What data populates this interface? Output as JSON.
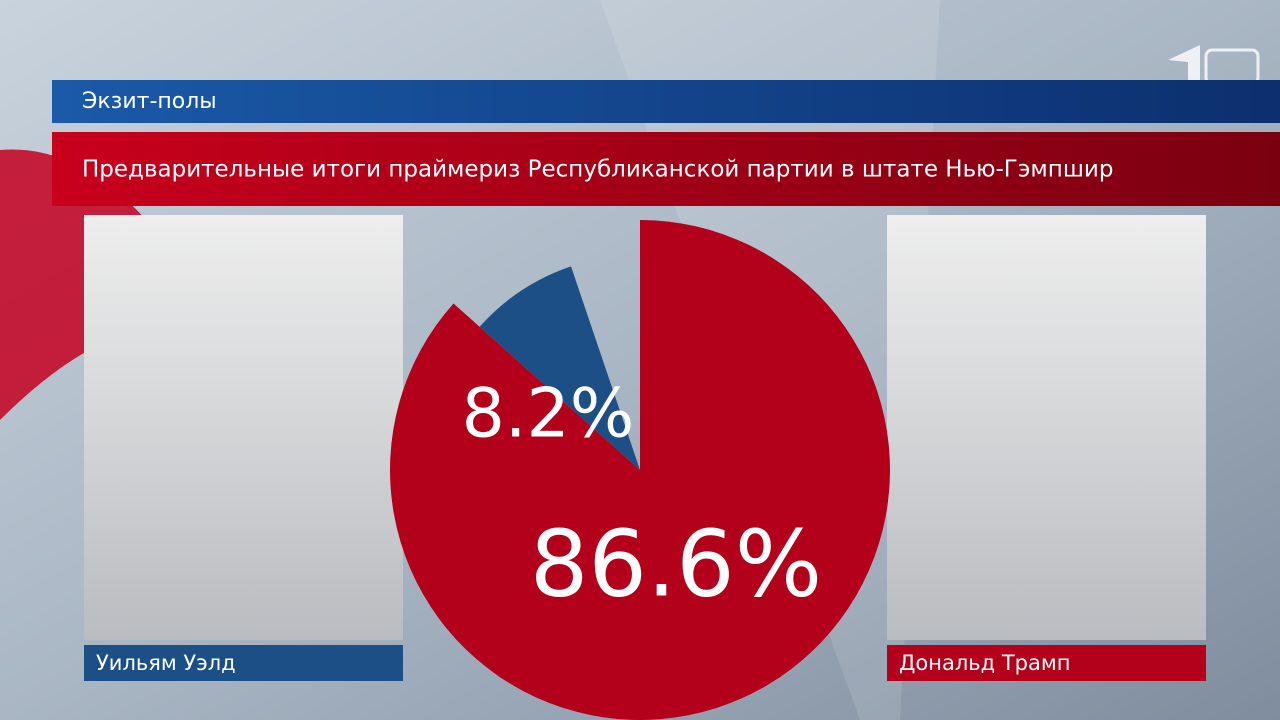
{
  "chart_data": {
    "type": "pie",
    "header": "Экзит-полы",
    "title": "Предварительные итоги праймериз Республиканской партии в штате Нью-Гэмпшир",
    "categories": [
      "Уильям Уэлд",
      "Дональд Трамп"
    ],
    "values": [
      8.2,
      86.6
    ],
    "value_labels": [
      "8.2%",
      "86.6%"
    ],
    "colors": [
      "#1b4f86",
      "#b3001b"
    ]
  }
}
